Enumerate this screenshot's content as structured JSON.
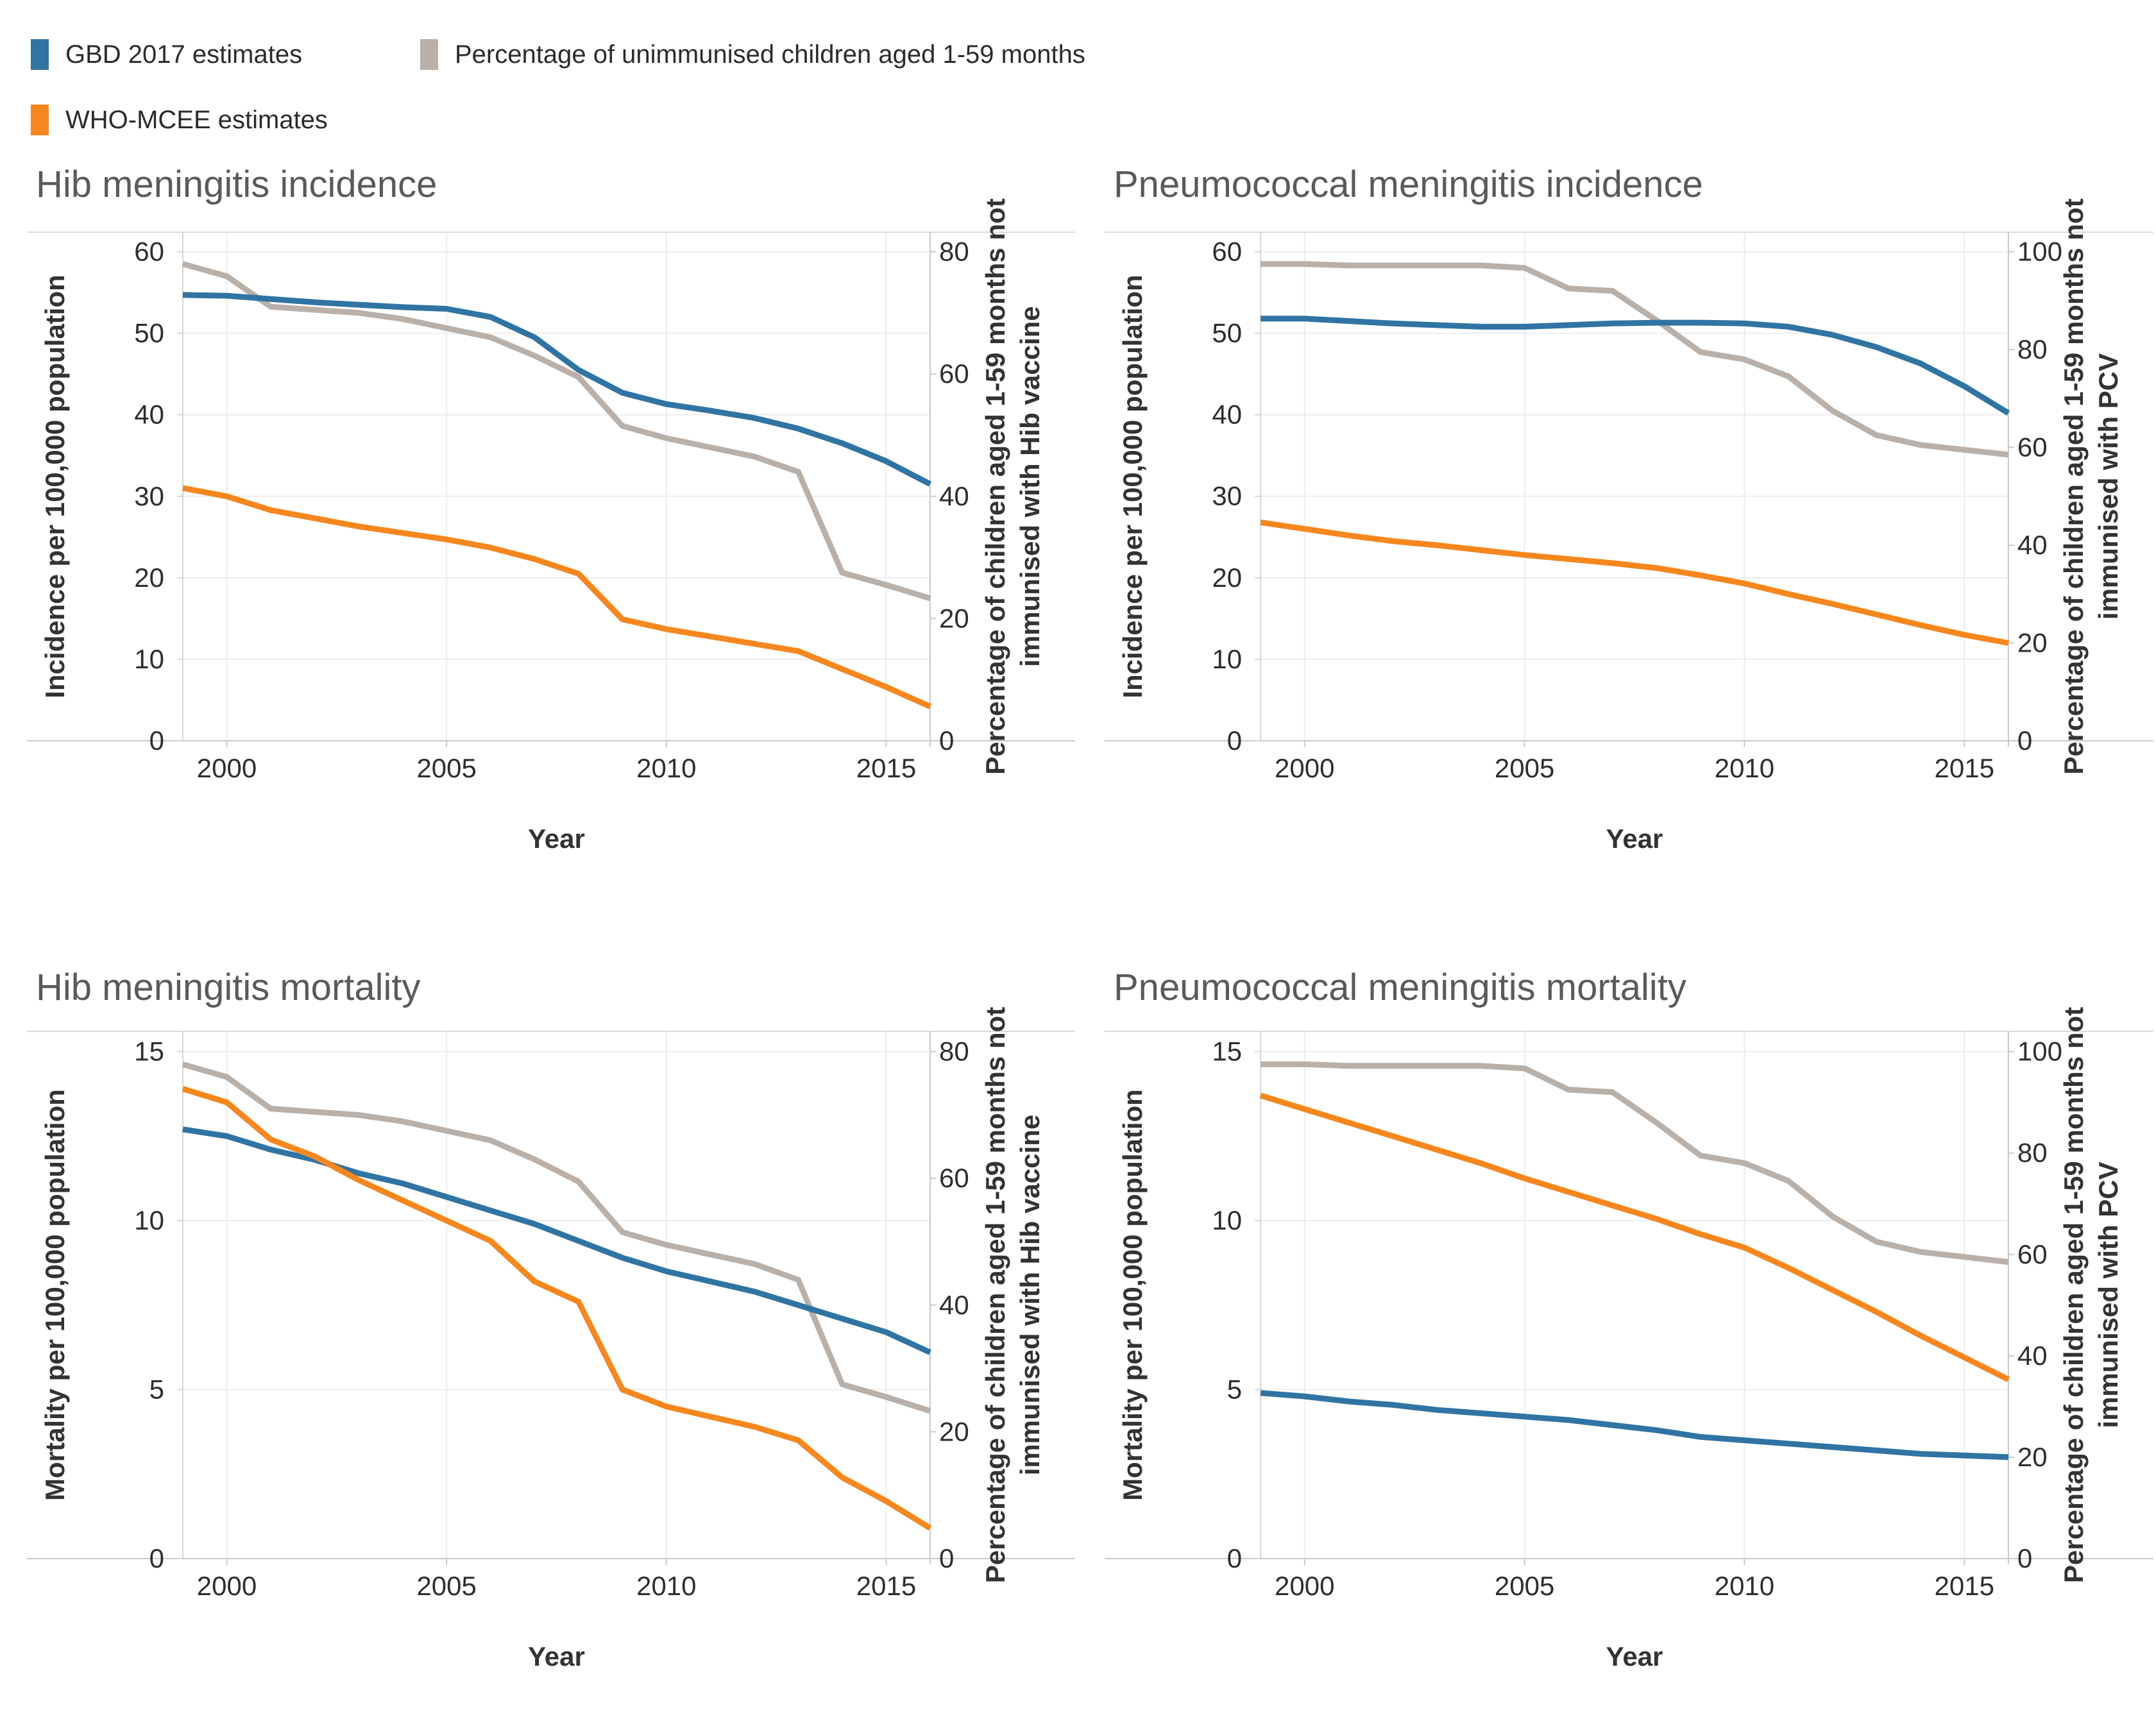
{
  "colors": {
    "gbd": "#2F74A3",
    "who": "#F6871F",
    "unimmunised": "#B9B0A9"
  },
  "legend": {
    "items": [
      {
        "label": "GBD 2017 estimates",
        "color_key": "gbd"
      },
      {
        "label": "WHO-MCEE estimates",
        "color_key": "who"
      },
      {
        "label": "Percentage of unimmunised children aged 1-59 months",
        "color_key": "unimmunised"
      }
    ]
  },
  "chart_data": [
    {
      "type": "line",
      "title": "Hib meningitis incidence",
      "xlabel": "Year",
      "x": [
        1999,
        2000,
        2001,
        2002,
        2003,
        2004,
        2005,
        2006,
        2007,
        2008,
        2009,
        2010,
        2011,
        2012,
        2013,
        2014,
        2015,
        2016
      ],
      "x_ticks": [
        2000,
        2005,
        2010,
        2015
      ],
      "left_axis": {
        "label": "Incidence per 100,000 population",
        "ticks": [
          0,
          10,
          20,
          30,
          40,
          50,
          60
        ],
        "range": [
          0,
          62.4
        ]
      },
      "right_axis": {
        "label_lines": [
          "Percentage of children aged 1-59 months not",
          "immunised with Hib vaccine"
        ],
        "ticks": [
          0,
          20,
          40,
          60,
          80
        ],
        "range": [
          0,
          83.2
        ]
      },
      "grid": true,
      "series": [
        {
          "name": "GBD 2017 estimates",
          "axis": "left",
          "color_key": "gbd",
          "values": [
            54.7,
            54.6,
            54.2,
            53.8,
            53.5,
            53.2,
            53.0,
            52.0,
            49.5,
            45.5,
            42.7,
            41.3,
            40.5,
            39.6,
            38.3,
            36.5,
            34.3,
            31.5
          ]
        },
        {
          "name": "WHO-MCEE estimates",
          "axis": "left",
          "color_key": "who",
          "values": [
            31.0,
            30.0,
            28.3,
            27.3,
            26.3,
            25.5,
            24.7,
            23.7,
            22.3,
            20.5,
            14.9,
            13.7,
            12.8,
            11.9,
            11.0,
            8.8,
            6.6,
            4.2
          ]
        },
        {
          "name": "Percentage of unimmunised children aged 1-59 months",
          "axis": "right",
          "color_key": "unimmunised",
          "values": [
            78,
            76,
            71,
            70.5,
            70,
            69,
            67.5,
            66,
            63,
            59.5,
            51.5,
            49.5,
            48,
            46.5,
            44,
            27.5,
            25.5,
            23.3
          ]
        }
      ]
    },
    {
      "type": "line",
      "title": "Pneumococcal meningitis incidence",
      "xlabel": "Year",
      "x": [
        1999,
        2000,
        2001,
        2002,
        2003,
        2004,
        2005,
        2006,
        2007,
        2008,
        2009,
        2010,
        2011,
        2012,
        2013,
        2014,
        2015,
        2016
      ],
      "x_ticks": [
        2000,
        2005,
        2010,
        2015
      ],
      "left_axis": {
        "label": "Incidence per 100,000 population",
        "ticks": [
          0,
          10,
          20,
          30,
          40,
          50,
          60
        ],
        "range": [
          0,
          62.4
        ]
      },
      "right_axis": {
        "label_lines": [
          "Percentage of children aged 1-59 months not",
          "immunised with PCV"
        ],
        "ticks": [
          0,
          20,
          40,
          60,
          80,
          100
        ],
        "range": [
          0,
          104
        ]
      },
      "grid": true,
      "series": [
        {
          "name": "GBD 2017 estimates",
          "axis": "left",
          "color_key": "gbd",
          "values": [
            51.8,
            51.8,
            51.5,
            51.2,
            51.0,
            50.8,
            50.8,
            51.0,
            51.2,
            51.3,
            51.3,
            51.2,
            50.8,
            49.8,
            48.3,
            46.3,
            43.5,
            40.2
          ]
        },
        {
          "name": "WHO-MCEE estimates",
          "axis": "left",
          "color_key": "who",
          "values": [
            26.8,
            26.0,
            25.2,
            24.5,
            24.0,
            23.4,
            22.8,
            22.3,
            21.8,
            21.2,
            20.3,
            19.3,
            18.0,
            16.8,
            15.5,
            14.2,
            13.0,
            12.0
          ]
        },
        {
          "name": "Percentage of unimmunised children aged 1-59 months",
          "axis": "right",
          "color_key": "unimmunised",
          "values": [
            97.5,
            97.5,
            97.2,
            97.2,
            97.2,
            97.2,
            96.7,
            92.5,
            92.0,
            86.0,
            79.5,
            78.0,
            74.5,
            67.5,
            62.5,
            60.5,
            59.5,
            58.5
          ]
        }
      ]
    },
    {
      "type": "line",
      "title": "Hib meningitis mortality",
      "xlabel": "Year",
      "x": [
        1999,
        2000,
        2001,
        2002,
        2003,
        2004,
        2005,
        2006,
        2007,
        2008,
        2009,
        2010,
        2011,
        2012,
        2013,
        2014,
        2015,
        2016
      ],
      "x_ticks": [
        2000,
        2005,
        2010,
        2015
      ],
      "left_axis": {
        "label": "Mortality per 100,000 population",
        "ticks": [
          0,
          5,
          10,
          15
        ],
        "range": [
          0,
          15.6
        ]
      },
      "right_axis": {
        "label_lines": [
          "Percentage of children aged 1-59 months not",
          "immunised with Hib vaccine"
        ],
        "ticks": [
          0,
          20,
          40,
          60,
          80
        ],
        "range": [
          0,
          83.2
        ]
      },
      "grid": true,
      "series": [
        {
          "name": "GBD 2017 estimates",
          "axis": "left",
          "color_key": "gbd",
          "values": [
            12.7,
            12.5,
            12.1,
            11.8,
            11.4,
            11.1,
            10.7,
            10.3,
            9.9,
            9.4,
            8.9,
            8.5,
            8.2,
            7.9,
            7.5,
            7.1,
            6.7,
            6.1
          ]
        },
        {
          "name": "WHO-MCEE estimates",
          "axis": "left",
          "color_key": "who",
          "values": [
            13.9,
            13.5,
            12.4,
            11.9,
            11.2,
            10.6,
            10.0,
            9.4,
            8.2,
            7.6,
            5.0,
            4.5,
            4.2,
            3.9,
            3.5,
            2.4,
            1.7,
            0.9
          ]
        },
        {
          "name": "Percentage of unimmunised children aged 1-59 months",
          "axis": "right",
          "color_key": "unimmunised",
          "values": [
            78,
            76,
            71,
            70.5,
            70,
            69,
            67.5,
            66,
            63,
            59.5,
            51.5,
            49.5,
            48,
            46.5,
            44,
            27.5,
            25.5,
            23.3
          ]
        }
      ]
    },
    {
      "type": "line",
      "title": "Pneumococcal meningitis mortality",
      "xlabel": "Year",
      "x": [
        1999,
        2000,
        2001,
        2002,
        2003,
        2004,
        2005,
        2006,
        2007,
        2008,
        2009,
        2010,
        2011,
        2012,
        2013,
        2014,
        2015,
        2016
      ],
      "x_ticks": [
        2000,
        2005,
        2010,
        2015
      ],
      "left_axis": {
        "label": "Mortality per 100,000 population",
        "ticks": [
          0,
          5,
          10,
          15
        ],
        "range": [
          0,
          15.6
        ]
      },
      "right_axis": {
        "label_lines": [
          "Percentage of children aged 1-59 months not",
          "immunised with PCV"
        ],
        "ticks": [
          0,
          20,
          40,
          60,
          80,
          100
        ],
        "range": [
          0,
          104
        ]
      },
      "grid": true,
      "series": [
        {
          "name": "GBD 2017 estimates",
          "axis": "left",
          "color_key": "gbd",
          "values": [
            4.9,
            4.8,
            4.65,
            4.55,
            4.4,
            4.3,
            4.2,
            4.1,
            3.95,
            3.8,
            3.6,
            3.5,
            3.4,
            3.3,
            3.2,
            3.1,
            3.05,
            3.0
          ]
        },
        {
          "name": "WHO-MCEE estimates",
          "axis": "left",
          "color_key": "who",
          "values": [
            13.7,
            13.3,
            12.9,
            12.5,
            12.1,
            11.7,
            11.25,
            10.85,
            10.45,
            10.05,
            9.6,
            9.2,
            8.6,
            7.95,
            7.3,
            6.6,
            5.95,
            5.3
          ]
        },
        {
          "name": "Percentage of unimmunised children aged 1-59 months",
          "axis": "right",
          "color_key": "unimmunised",
          "values": [
            97.5,
            97.5,
            97.2,
            97.2,
            97.2,
            97.2,
            96.7,
            92.5,
            92.0,
            86.0,
            79.5,
            78.0,
            74.5,
            67.5,
            62.5,
            60.5,
            59.5,
            58.5
          ]
        }
      ]
    }
  ]
}
